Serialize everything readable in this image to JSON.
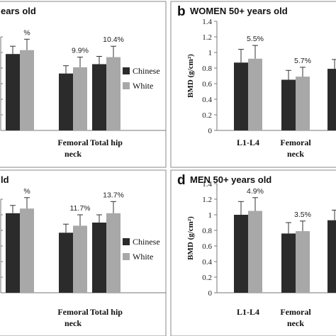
{
  "colors": {
    "chinese": "#2b2b2b",
    "white": "#a8a8a8",
    "frame": "#888888",
    "axis": "#777777"
  },
  "chart_data": [
    {
      "id": "a",
      "type": "bar",
      "title": "ears old",
      "percent_labels": [
        "%",
        "9.9%",
        "10.4%"
      ],
      "categories": [
        [
          "",
          ""
        ],
        [
          "Femoral",
          "neck"
        ],
        [
          "Total hip",
          ""
        ]
      ],
      "series": [
        {
          "name": "Chinese",
          "values": [
            0.98,
            0.73,
            0.85
          ],
          "errors": [
            0.1,
            0.1,
            0.1
          ]
        },
        {
          "name": "White",
          "values": [
            1.03,
            0.81,
            0.94
          ],
          "errors": [
            0.14,
            0.13,
            0.14
          ]
        }
      ],
      "ylim": [
        0.0,
        1.4
      ],
      "legend": [
        "Chinese",
        "White"
      ],
      "legend_position": "right"
    },
    {
      "id": "b",
      "letter": "b",
      "type": "bar",
      "title": "WOMEN 50+ years old",
      "ylabel": "BMD (g/cm²)",
      "yticks": [
        "0",
        "0.2",
        "0.4",
        "0.6",
        "0.8",
        "1",
        "1.2",
        "1.4"
      ],
      "percent_labels": [
        "5.5%",
        "5.7%",
        ""
      ],
      "categories": [
        [
          "L1-L4",
          ""
        ],
        [
          "Femoral",
          "neck"
        ],
        [
          "To",
          ""
        ]
      ],
      "series": [
        {
          "name": "Chinese",
          "values": [
            0.87,
            0.65,
            0.79
          ],
          "errors": [
            0.17,
            0.12,
            0.12
          ]
        },
        {
          "name": "White",
          "values": [
            0.92,
            0.69,
            0.84
          ],
          "errors": [
            0.17,
            0.12,
            0.12
          ]
        }
      ],
      "ylim": [
        0.0,
        1.4
      ]
    },
    {
      "id": "c",
      "type": "bar",
      "title": "ld",
      "percent_labels": [
        "%",
        "11.7%",
        "13.7%"
      ],
      "categories": [
        [
          "",
          ""
        ],
        [
          "Femoral",
          "neck"
        ],
        [
          "Total hip",
          ""
        ]
      ],
      "series": [
        {
          "name": "Chinese",
          "values": [
            1.02,
            0.77,
            0.9
          ],
          "errors": [
            0.1,
            0.11,
            0.1
          ]
        },
        {
          "name": "White",
          "values": [
            1.08,
            0.86,
            1.02
          ],
          "errors": [
            0.14,
            0.14,
            0.15
          ]
        }
      ],
      "ylim": [
        0.0,
        1.4
      ],
      "legend": [
        "Chinese",
        "White"
      ],
      "legend_position": "right"
    },
    {
      "id": "d",
      "letter": "d",
      "type": "bar",
      "title": "MEN 50+ years old",
      "ylabel": "BMD (g/cm²)",
      "yticks": [
        "0",
        "0.2",
        "0.4",
        "0.6",
        "0.8",
        "1",
        "1.2",
        "1.4"
      ],
      "percent_labels": [
        "4.9%",
        "3.5%",
        ""
      ],
      "categories": [
        [
          "L1-L4",
          ""
        ],
        [
          "Femoral",
          "neck"
        ],
        [
          "To",
          ""
        ]
      ],
      "series": [
        {
          "name": "Chinese",
          "values": [
            1.0,
            0.76,
            0.93
          ],
          "errors": [
            0.17,
            0.14,
            0.13
          ]
        },
        {
          "name": "White",
          "values": [
            1.05,
            0.79,
            0.98
          ],
          "errors": [
            0.17,
            0.13,
            0.13
          ]
        }
      ],
      "ylim": [
        0.0,
        1.4
      ]
    }
  ]
}
